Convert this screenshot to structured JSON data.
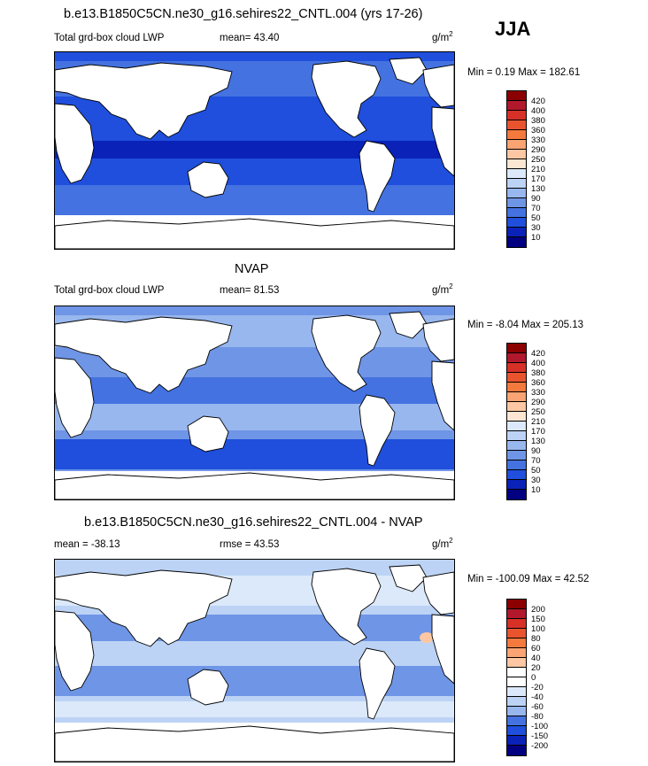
{
  "header": {
    "season": "JJA"
  },
  "chart_data": [
    {
      "type": "heatmap",
      "title": "b.e13.B1850C5CN.ne30_g16.sehires22_CNTL.004 (yrs 17-26)",
      "left_label": "Total grd-box cloud LWP",
      "center_label": "mean=  43.40",
      "units_base": "g/m",
      "units_exp": "2",
      "minmax": "Min =   0.19 Max = 182.61",
      "colorbar_levels": [
        "420",
        "400",
        "380",
        "360",
        "330",
        "290",
        "250",
        "210",
        "170",
        "130",
        "90",
        "70",
        "50",
        "30",
        "10"
      ],
      "colorbar_colors": [
        "#8b0000",
        "#b2182b",
        "#d73027",
        "#e9542e",
        "#f4793c",
        "#f9a472",
        "#fcc7a2",
        "#fde6d2",
        "#dce9fa",
        "#bcd3f5",
        "#98b7ee",
        "#6f95e6",
        "#4472e0",
        "#1f4fdc",
        "#0a22b8",
        "#000080"
      ]
    },
    {
      "type": "heatmap",
      "title": "NVAP",
      "left_label": "Total grd-box cloud LWP",
      "center_label": "mean=  81.53",
      "units_base": "g/m",
      "units_exp": "2",
      "minmax": "Min =  -8.04 Max = 205.13",
      "colorbar_levels": [
        "420",
        "400",
        "380",
        "360",
        "330",
        "290",
        "250",
        "210",
        "170",
        "130",
        "90",
        "70",
        "50",
        "30",
        "10"
      ],
      "colorbar_colors": [
        "#8b0000",
        "#b2182b",
        "#d73027",
        "#e9542e",
        "#f4793c",
        "#f9a472",
        "#fcc7a2",
        "#fde6d2",
        "#dce9fa",
        "#bcd3f5",
        "#98b7ee",
        "#6f95e6",
        "#4472e0",
        "#1f4fdc",
        "#0a22b8",
        "#000080"
      ]
    },
    {
      "type": "heatmap",
      "title": "b.e13.B1850C5CN.ne30_g16.sehires22_CNTL.004 - NVAP",
      "left_label": "mean = -38.13",
      "center_label": "rmse =  43.53",
      "units_base": "g/m",
      "units_exp": "2",
      "minmax": "Min = -100.09 Max =  42.52",
      "colorbar_levels": [
        "200",
        "150",
        "100",
        "80",
        "60",
        "40",
        "20",
        "0",
        "-20",
        "-40",
        "-60",
        "-80",
        "-100",
        "-150",
        "-200"
      ],
      "colorbar_colors": [
        "#8b0000",
        "#b2182b",
        "#d73027",
        "#e9542e",
        "#f4793c",
        "#f9a472",
        "#fcc7a2",
        "#ffffff",
        "#ffffff",
        "#dce9fa",
        "#bcd3f5",
        "#98b7ee",
        "#4472e0",
        "#1f4fdc",
        "#0a22b8",
        "#000080"
      ]
    }
  ]
}
